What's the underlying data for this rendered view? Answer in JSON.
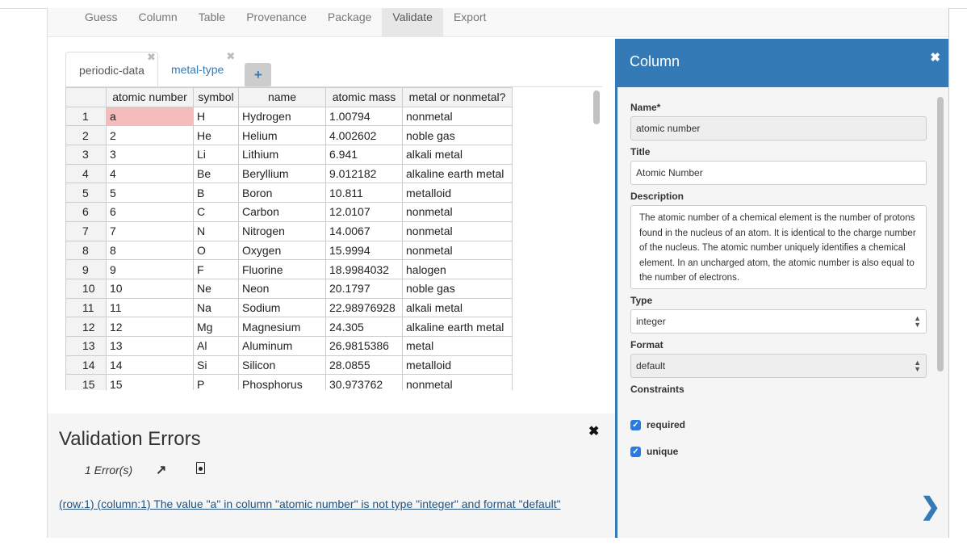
{
  "nav": [
    "Guess",
    "Column",
    "Table",
    "Provenance",
    "Package",
    "Validate",
    "Export"
  ],
  "nav_active": "Validate",
  "tabs": [
    {
      "label": "periodic-data",
      "close": "✖"
    },
    {
      "label": "metal-type",
      "close": "✖"
    }
  ],
  "add_tab": "+",
  "table": {
    "headers": [
      "",
      "atomic number",
      "symbol",
      "name",
      "atomic mass",
      "metal or nonmetal?"
    ],
    "rows": [
      [
        "1",
        "a",
        "H",
        "Hydrogen",
        "1.00794",
        "nonmetal"
      ],
      [
        "2",
        "2",
        "He",
        "Helium",
        "4.002602",
        "noble gas"
      ],
      [
        "3",
        "3",
        "Li",
        "Lithium",
        "6.941",
        "alkali metal"
      ],
      [
        "4",
        "4",
        "Be",
        "Beryllium",
        "9.012182",
        "alkaline earth metal"
      ],
      [
        "5",
        "5",
        "B",
        "Boron",
        "10.811",
        "metalloid"
      ],
      [
        "6",
        "6",
        "C",
        "Carbon",
        "12.0107",
        "nonmetal"
      ],
      [
        "7",
        "7",
        "N",
        "Nitrogen",
        "14.0067",
        "nonmetal"
      ],
      [
        "8",
        "8",
        "O",
        "Oxygen",
        "15.9994",
        "nonmetal"
      ],
      [
        "9",
        "9",
        "F",
        "Fluorine",
        "18.9984032",
        "halogen"
      ],
      [
        "10",
        "10",
        "Ne",
        "Neon",
        "20.1797",
        "noble gas"
      ],
      [
        "11",
        "11",
        "Na",
        "Sodium",
        "22.98976928",
        "alkali metal"
      ],
      [
        "12",
        "12",
        "Mg",
        "Magnesium",
        "24.305",
        "alkaline earth metal"
      ],
      [
        "13",
        "13",
        "Al",
        "Aluminum",
        "26.9815386",
        "metal"
      ],
      [
        "14",
        "14",
        "Si",
        "Silicon",
        "28.0855",
        "metalloid"
      ],
      [
        "15",
        "15",
        "P",
        "Phosphorus",
        "30.973762",
        "nonmetal"
      ]
    ],
    "error_cell_color": "#f4bcbc"
  },
  "validation": {
    "title": "Validation Errors",
    "close": "✖",
    "count": "1 Error(s)",
    "message": "(row:1) (column:1) The value \"a\" in column \"atomic number\" is not type \"integer\" and format \"default\""
  },
  "column_panel": {
    "title": "Column",
    "close": "✖",
    "name_label": "Name*",
    "name_value": "atomic number",
    "title_label": "Title",
    "title_value": "Atomic Number",
    "description_label": "Description",
    "description_value": "The atomic number of a chemical element is the number of protons found in the nucleus of an atom. It is identical to the charge number of the nucleus. The atomic number uniquely identifies a chemical element. In an uncharged atom, the atomic number is also equal to the number of electrons.",
    "type_label": "Type",
    "type_value": "integer",
    "format_label": "Format",
    "format_value": "default",
    "constraints_label": "Constraints",
    "required_label": "required",
    "unique_label": "unique",
    "next": "❯",
    "accent": "#337ab7"
  }
}
